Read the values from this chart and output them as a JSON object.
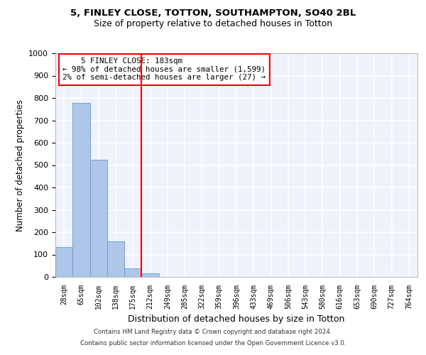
{
  "title1": "5, FINLEY CLOSE, TOTTON, SOUTHAMPTON, SO40 2BL",
  "title2": "Size of property relative to detached houses in Totton",
  "xlabel": "Distribution of detached houses by size in Totton",
  "ylabel": "Number of detached properties",
  "annotation_line1": "    5 FINLEY CLOSE: 183sqm    ",
  "annotation_line2": "← 98% of detached houses are smaller (1,599)",
  "annotation_line3": "2% of semi-detached houses are larger (27) →",
  "footer1": "Contains HM Land Registry data © Crown copyright and database right 2024.",
  "footer2": "Contains public sector information licensed under the Open Government Licence v3.0.",
  "bar_color": "#aec6e8",
  "bar_edge_color": "#5a9fd4",
  "vline_color": "red",
  "vline_x": 4.5,
  "categories": [
    "28sqm",
    "65sqm",
    "102sqm",
    "138sqm",
    "175sqm",
    "212sqm",
    "249sqm",
    "285sqm",
    "322sqm",
    "359sqm",
    "396sqm",
    "433sqm",
    "469sqm",
    "506sqm",
    "543sqm",
    "580sqm",
    "616sqm",
    "653sqm",
    "690sqm",
    "727sqm",
    "764sqm"
  ],
  "values": [
    133,
    778,
    523,
    160,
    38,
    15,
    0,
    0,
    0,
    0,
    0,
    0,
    0,
    0,
    0,
    0,
    0,
    0,
    0,
    0,
    0
  ],
  "ylim": [
    0,
    1000
  ],
  "yticks": [
    0,
    100,
    200,
    300,
    400,
    500,
    600,
    700,
    800,
    900,
    1000
  ],
  "background_color": "#eef2fb",
  "grid_color": "#ffffff",
  "annotation_box_color": "white",
  "annotation_box_edge": "red"
}
